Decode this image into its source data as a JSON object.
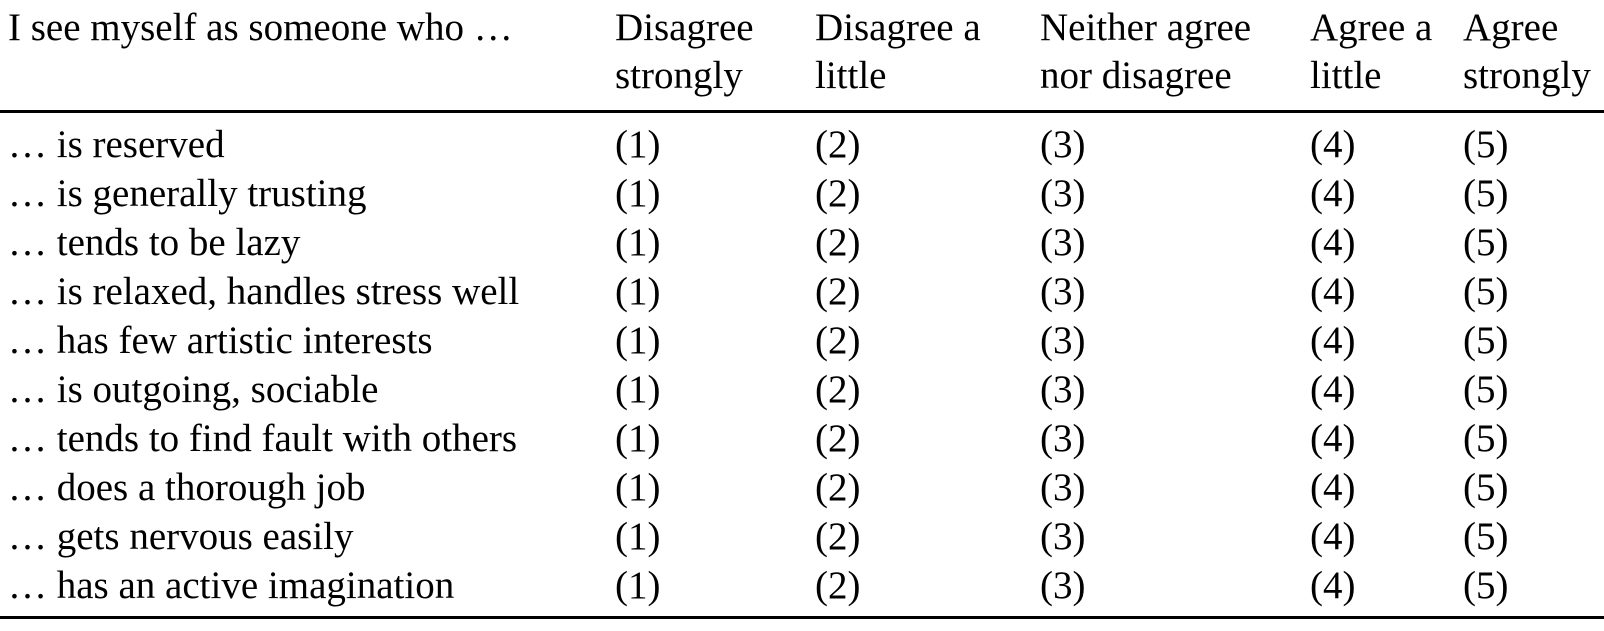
{
  "colors": {
    "background": "#ffffff",
    "text": "#000000",
    "rule": "#000000"
  },
  "table": {
    "header": {
      "item": "I see myself as someone who …",
      "scale": [
        "Disagree strongly",
        "Disagree a little",
        "Neither agree nor disagree",
        "Agree a little",
        "Agree strongly"
      ]
    },
    "rows": [
      {
        "item": "… is reserved",
        "ratings": [
          "(1)",
          "(2)",
          "(3)",
          "(4)",
          "(5)"
        ]
      },
      {
        "item": "… is generally trusting",
        "ratings": [
          "(1)",
          "(2)",
          "(3)",
          "(4)",
          "(5)"
        ]
      },
      {
        "item": "… tends to be lazy",
        "ratings": [
          "(1)",
          "(2)",
          "(3)",
          "(4)",
          "(5)"
        ]
      },
      {
        "item": "… is relaxed, handles stress well",
        "ratings": [
          "(1)",
          "(2)",
          "(3)",
          "(4)",
          "(5)"
        ]
      },
      {
        "item": "… has few artistic interests",
        "ratings": [
          "(1)",
          "(2)",
          "(3)",
          "(4)",
          "(5)"
        ]
      },
      {
        "item": "… is outgoing, sociable",
        "ratings": [
          "(1)",
          "(2)",
          "(3)",
          "(4)",
          "(5)"
        ]
      },
      {
        "item": "… tends to find fault with others",
        "ratings": [
          "(1)",
          "(2)",
          "(3)",
          "(4)",
          "(5)"
        ]
      },
      {
        "item": "… does a thorough job",
        "ratings": [
          "(1)",
          "(2)",
          "(3)",
          "(4)",
          "(5)"
        ]
      },
      {
        "item": "… gets nervous easily",
        "ratings": [
          "(1)",
          "(2)",
          "(3)",
          "(4)",
          "(5)"
        ]
      },
      {
        "item": "… has an active imagination",
        "ratings": [
          "(1)",
          "(2)",
          "(3)",
          "(4)",
          "(5)"
        ]
      }
    ]
  }
}
